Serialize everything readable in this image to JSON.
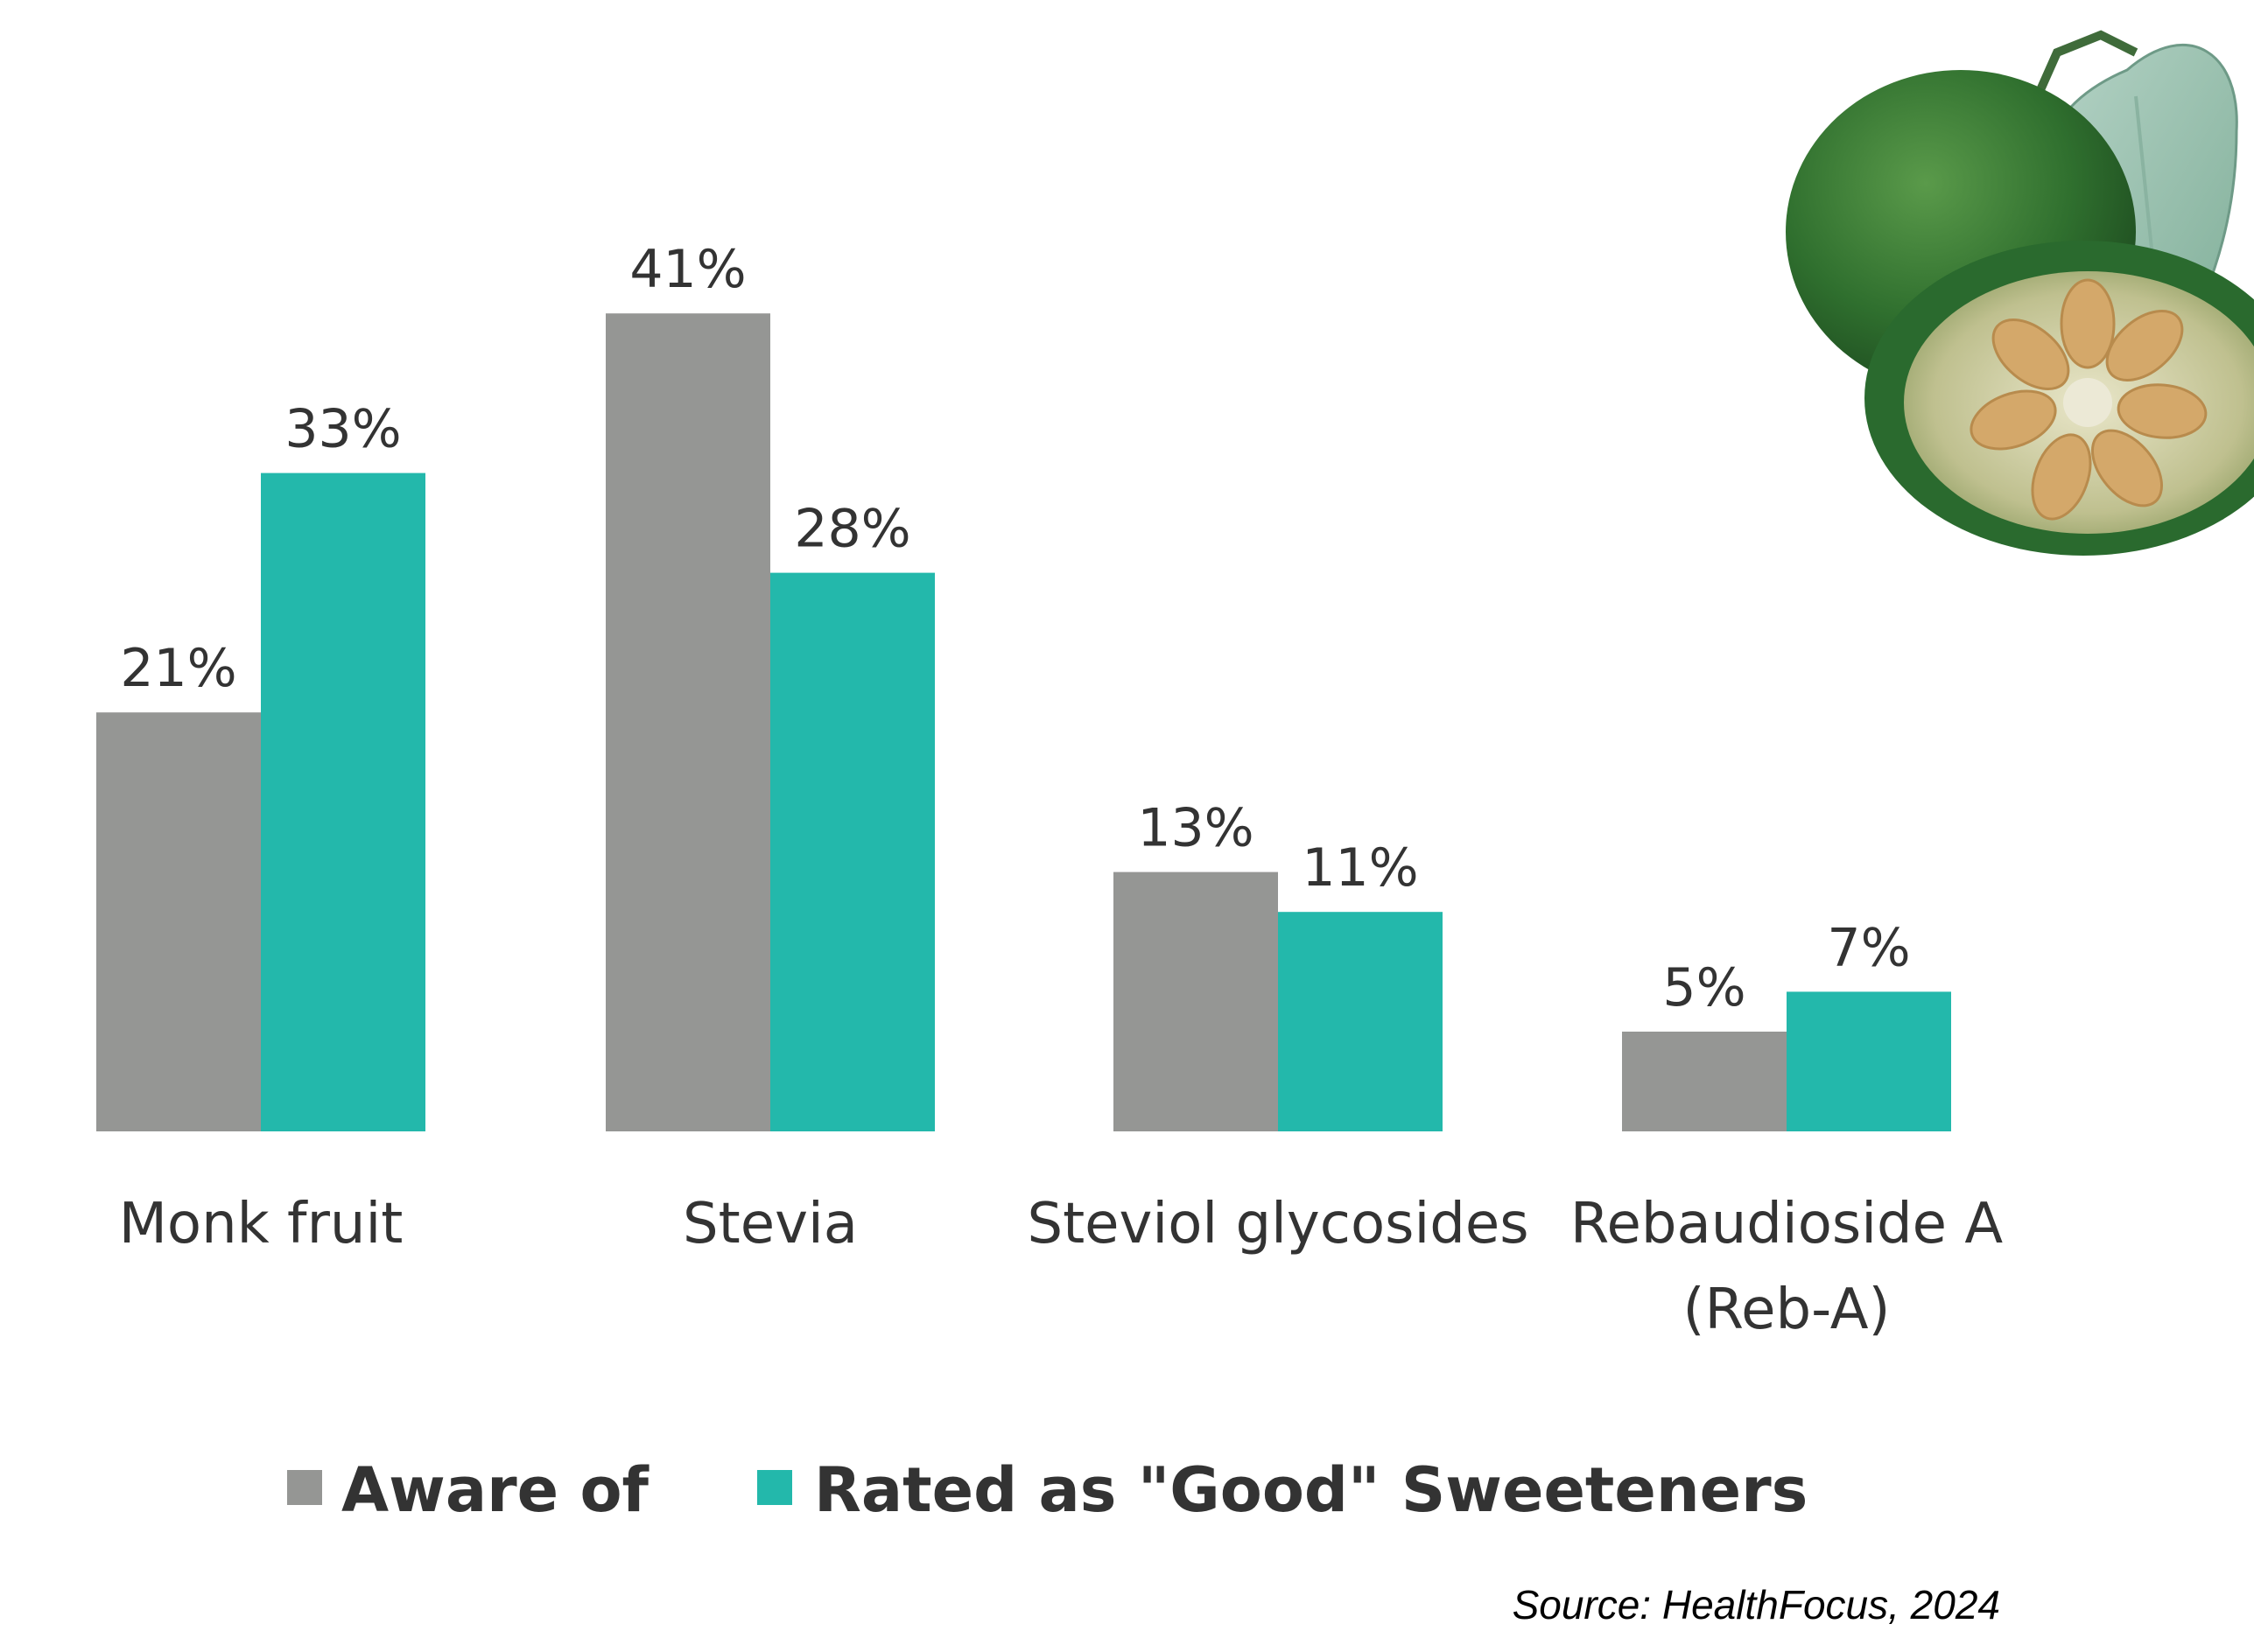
{
  "chart_data": {
    "type": "bar",
    "categories": [
      [
        "Monk fruit"
      ],
      [
        "Stevia"
      ],
      [
        "Steviol glycosides"
      ],
      [
        "Rebaudioside A",
        "(Reb-A)"
      ]
    ],
    "series": [
      {
        "name": "Aware of",
        "color": "#959694",
        "values": [
          21,
          41,
          13,
          5
        ],
        "labels": [
          "21%",
          "41%",
          "13%",
          "5%"
        ]
      },
      {
        "name": "Rated as \"Good\" Sweeteners",
        "color": "#23b8ab",
        "values": [
          33,
          28,
          11,
          7
        ],
        "labels": [
          "33%",
          "28%",
          "11%",
          "7%"
        ]
      }
    ],
    "ylim": [
      0,
      41
    ],
    "grid": false,
    "legend_position": "bottom"
  },
  "source": "Source: HealthFocus, 2024",
  "image": {
    "icon": "monk-fruit-photo"
  }
}
